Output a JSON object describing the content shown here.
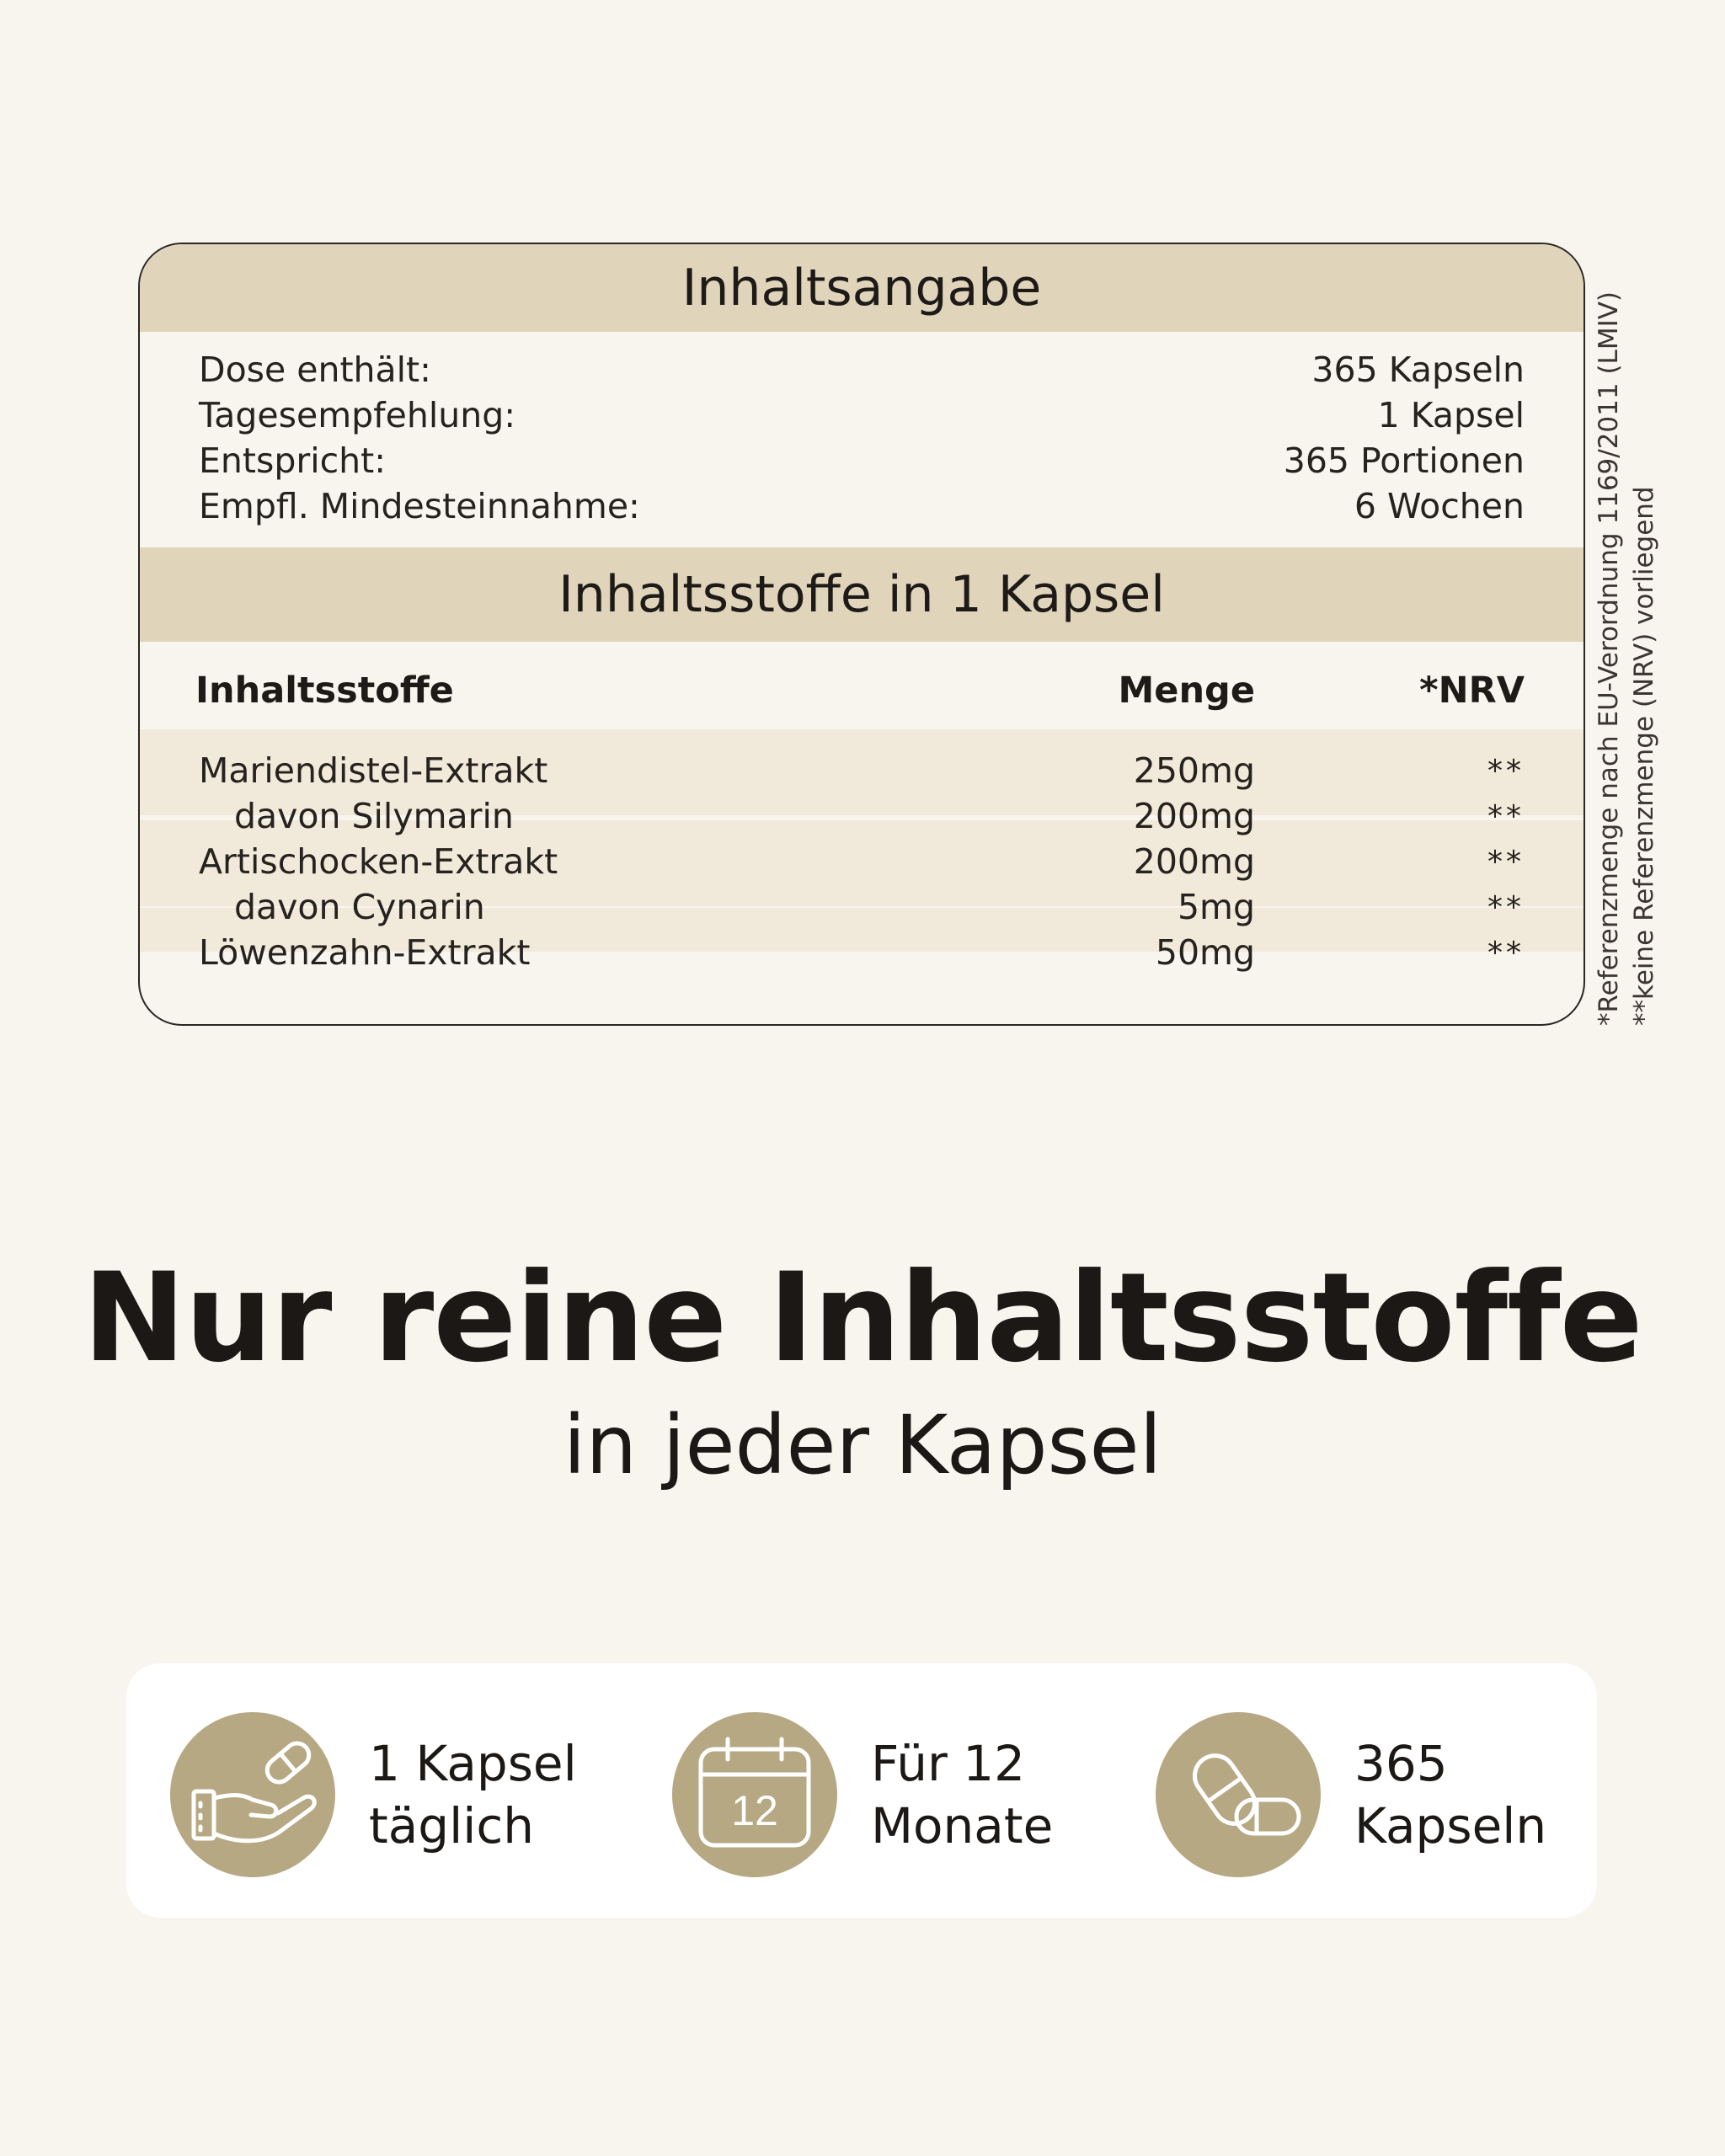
{
  "label": {
    "title": "Inhaltsangabe",
    "summary": [
      {
        "label": "Dose enthält:",
        "value": "365 Kapseln"
      },
      {
        "label": "Tagesempfehlung:",
        "value": "1 Kapsel"
      },
      {
        "label": "Entspricht:",
        "value": "365 Portionen"
      },
      {
        "label": "Empfl. Mindesteinnahme:",
        "value": "6 Wochen"
      }
    ],
    "ingredients_title": "Inhaltsstoffe in 1 Kapsel",
    "columns": {
      "name": "Inhaltsstoffe",
      "qty": "Menge",
      "nrv": "*NRV"
    },
    "ingredients": [
      {
        "name": "Mariendistel-Extrakt",
        "qty": "250mg",
        "nrv": "**"
      },
      {
        "name": "davon Silymarin",
        "qty": "200mg",
        "nrv": "**"
      },
      {
        "name": "Artischocken-Extrakt",
        "qty": "200mg",
        "nrv": "**"
      },
      {
        "name": "davon Cynarin",
        "qty": "5mg",
        "nrv": "**"
      },
      {
        "name": "Löwenzahn-Extrakt",
        "qty": "50mg",
        "nrv": "**"
      }
    ],
    "footnotes": [
      "*Referenzmenge nach EU-Verordnung 1169/2011 (LMIV)",
      "**keine Referenzmenge (NRV) vorliegend"
    ]
  },
  "headline": "Nur reine Inhaltsstoffe",
  "subline": "in jeder Kapsel",
  "features": [
    {
      "icon": "hand-capsule-icon",
      "line1": "1 Kapsel",
      "line2": "täglich"
    },
    {
      "icon": "calendar-icon",
      "calendar_number": "12",
      "line1": "Für 12",
      "line2": "Monate"
    },
    {
      "icon": "capsules-icon",
      "line1": "365",
      "line2": "Kapseln"
    }
  ],
  "colors": {
    "background": "#f8f4ee",
    "band": "#e0d4bb",
    "row_tint": "#f1e9da",
    "icon_circle": "#b7a884",
    "text": "#1d1a17"
  }
}
